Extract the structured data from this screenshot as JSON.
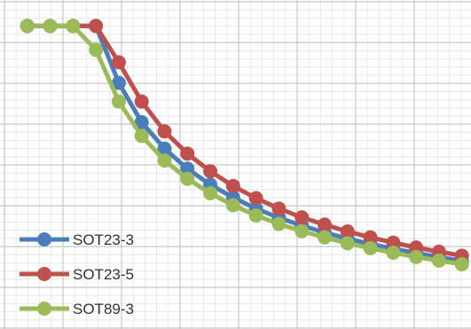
{
  "chart_data": {
    "type": "line",
    "title": "",
    "xlabel": "",
    "ylabel": "",
    "grid": true,
    "legend_position": "bottom-left",
    "x": [
      1,
      2,
      3,
      4,
      5,
      6,
      7,
      8,
      9,
      10,
      11,
      12,
      13,
      14,
      15,
      16,
      17,
      18,
      19,
      20
    ],
    "xlim": [
      0,
      20.4
    ],
    "ylim": [
      0,
      100
    ],
    "series": [
      {
        "name": "SOT23-3",
        "color": "#4a7ebb",
        "values": [
          92.6,
          92.6,
          92.6,
          92.6,
          75.2,
          63.2,
          55.1,
          49.0,
          44.1,
          40.2,
          36.8,
          34.0,
          31.6,
          29.5,
          27.6,
          26.0,
          24.5,
          23.2,
          22.0,
          20.8
        ]
      },
      {
        "name": "SOT23-5",
        "color": "#c0504d",
        "values": [
          92.6,
          92.6,
          92.6,
          92.6,
          81.5,
          69.5,
          60.4,
          53.6,
          48.2,
          43.7,
          40.0,
          36.8,
          34.1,
          31.9,
          29.8,
          28.0,
          26.4,
          24.9,
          23.6,
          22.4
        ]
      },
      {
        "name": "SOT89-3",
        "color": "#9bbb59",
        "values": [
          92.6,
          92.6,
          92.6,
          85.3,
          69.5,
          59.0,
          51.5,
          45.9,
          41.5,
          37.8,
          34.7,
          32.1,
          29.9,
          28.0,
          26.2,
          24.7,
          23.3,
          22.0,
          20.9,
          19.8
        ]
      }
    ]
  }
}
